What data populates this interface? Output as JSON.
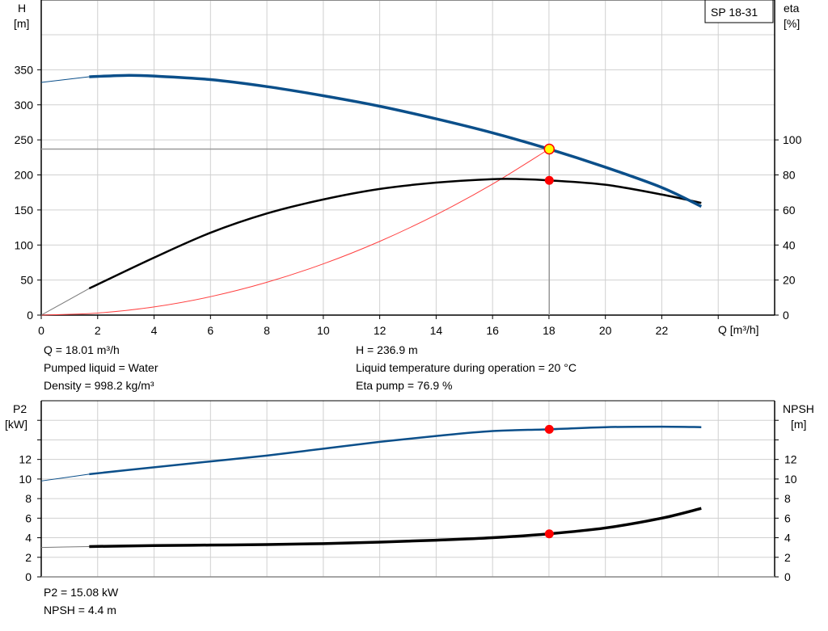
{
  "chart_data": [
    {
      "type": "line",
      "model_label": "SP 18-31",
      "xlabel": "Q [m³/h]",
      "ylabel_left": [
        "H",
        "[m]"
      ],
      "ylabel_right": [
        "eta",
        "[%]"
      ],
      "xlim": [
        0,
        26
      ],
      "x_ticks": [
        0,
        2,
        4,
        6,
        8,
        10,
        12,
        14,
        16,
        18,
        20,
        22
      ],
      "ylim_left": [
        0,
        400
      ],
      "y_ticks_left": [
        0,
        50,
        100,
        150,
        200,
        250,
        300,
        350
      ],
      "ylim_right": [
        0,
        160
      ],
      "y_ticks_right": [
        0,
        20,
        40,
        60,
        80,
        100
      ],
      "grid": true,
      "colors": {
        "head": "#0b4f8a",
        "eta": "#000000",
        "system": "#ff4040",
        "duty_fill": "#ffff00",
        "marker": "#ff0000",
        "grid": "#d0d0d0"
      },
      "series": [
        {
          "axis": "left",
          "role": "head",
          "extrapolated_to": 1.7,
          "x": [
            0,
            1.7,
            3,
            4,
            6,
            8,
            10,
            12,
            14,
            16,
            18,
            20,
            22,
            23.4
          ],
          "y": [
            332,
            340,
            342,
            341,
            336,
            326,
            313,
            298,
            280,
            260,
            237,
            211,
            182,
            155
          ]
        },
        {
          "axis": "right",
          "role": "eta",
          "extrapolated_to": 1.7,
          "x": [
            0,
            1.7,
            4,
            6,
            8,
            10,
            12,
            14,
            16,
            17,
            18,
            20,
            22,
            23.4
          ],
          "y": [
            0,
            15.2,
            32.8,
            47,
            58,
            66,
            72,
            75.6,
            77.6,
            77.6,
            76.9,
            74.4,
            68.8,
            64
          ]
        },
        {
          "axis": "left",
          "role": "system",
          "x": [
            0,
            2,
            4,
            6,
            8,
            10,
            12,
            14,
            16,
            18
          ],
          "y": [
            0,
            2.9,
            11.7,
            26.3,
            46.8,
            73.1,
            105.2,
            143.2,
            187,
            236.9
          ]
        }
      ],
      "duty_point": {
        "q": 18.01,
        "h": 236.9,
        "eta": 76.9
      }
    },
    {
      "type": "line",
      "ylabel_left": [
        "P2",
        "[kW]"
      ],
      "ylabel_right": [
        "NPSH",
        "[m]"
      ],
      "xlim": [
        0,
        26
      ],
      "ylim_left": [
        0,
        18
      ],
      "y_ticks_left": [
        0,
        2,
        4,
        6,
        8,
        10,
        12
      ],
      "ylim_right": [
        0,
        18
      ],
      "y_ticks_right": [
        0,
        2,
        4,
        6,
        8,
        10,
        12
      ],
      "grid": true,
      "colors": {
        "p2": "#0b4f8a",
        "npsh": "#000000",
        "marker": "#ff0000"
      },
      "series": [
        {
          "role": "p2",
          "extrapolated_to": 1.7,
          "x": [
            0,
            1.7,
            4,
            6,
            8,
            10,
            12,
            14,
            16,
            18,
            20,
            22,
            23.4
          ],
          "y": [
            9.8,
            10.5,
            11.2,
            11.8,
            12.4,
            13.1,
            13.8,
            14.4,
            14.9,
            15.08,
            15.3,
            15.35,
            15.3
          ]
        },
        {
          "role": "npsh",
          "extrapolated_to": 1.7,
          "x": [
            0,
            1.7,
            4,
            6,
            8,
            10,
            12,
            14,
            16,
            18,
            20,
            22,
            23.4
          ],
          "y": [
            3.0,
            3.1,
            3.2,
            3.25,
            3.3,
            3.4,
            3.55,
            3.75,
            4.0,
            4.4,
            5.0,
            6.0,
            7.0
          ]
        }
      ],
      "duty_point": {
        "q": 18.01,
        "p2": 15.08,
        "npsh": 4.4
      }
    }
  ],
  "info_top": {
    "q": "Q = 18.01 m³/h",
    "liquid": "Pumped liquid = Water",
    "density": "Density = 998.2 kg/m³",
    "h": "H = 236.9 m",
    "temperature": "Liquid temperature during operation = 20 °C",
    "eta": "Eta pump = 76.9 %"
  },
  "info_bottom": {
    "p2": "P2 = 15.08 kW",
    "npsh": "NPSH = 4.4 m"
  }
}
